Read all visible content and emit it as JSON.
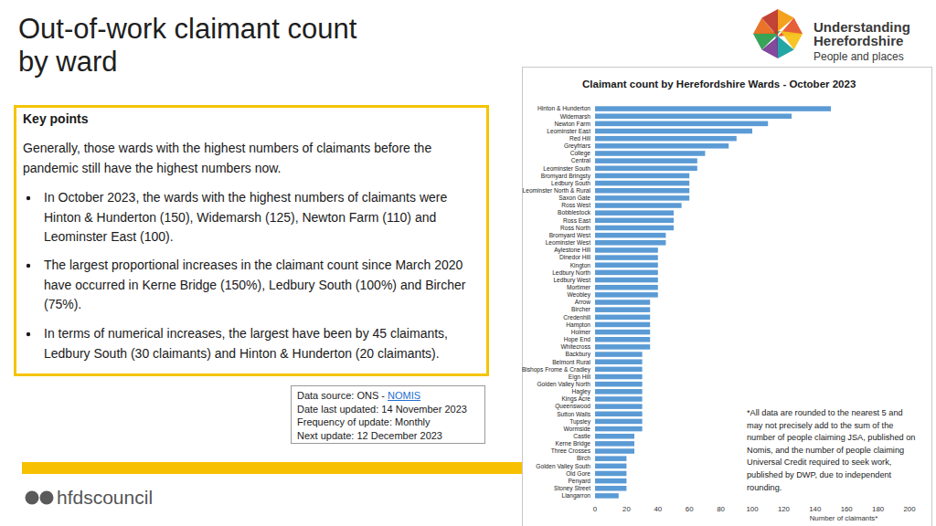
{
  "page": {
    "title_lines": [
      "Out-of-work claimant count",
      "by ward"
    ],
    "key_points": {
      "heading": "Key points",
      "intro": "Generally, those wards with the highest numbers of claimants before the pandemic still have the highest numbers now.",
      "bullets": [
        "In October 2023, the wards with the highest numbers of claimants were Hinton & Hunderton (150), Widemarsh (125), Newton Farm (110) and Leominster East (100).",
        "The largest proportional increases in the claimant count since March 2020 have occurred in Kerne Bridge (150%), Ledbury South (100%) and Bircher (75%).",
        "In terms of numerical increases, the largest have been by 45 claimants, Ledbury South (30 claimants) and Hinton & Hunderton (20 claimants)."
      ]
    },
    "data_source": {
      "label": "Data source: ONS - ",
      "link": "NOMIS",
      "lines": [
        "Date last updated: 14 November 2023",
        "Frequency of update: Monthly",
        "Next update: 12 December 2023"
      ]
    },
    "logo": {
      "lines": [
        "Understanding",
        "Herefordshire"
      ],
      "tagline": "People and places"
    },
    "footer": "hfdscouncil"
  },
  "chart_data": {
    "type": "bar",
    "orientation": "horizontal",
    "title": "Claimant count by Herefordshire Wards - October 2023",
    "x_label": "Number of claimants*",
    "annotation": "*All data are rounded to the nearest 5 and may not precisely add to the sum of the number of people claiming JSA, published on Nomis, and the number of people claiming Universal Credit required to seek work, published by DWP, due to independent rounding.",
    "categories": [
      "Hinton & Hunderton",
      "Widemarsh",
      "Newton Farm",
      "Leominster East",
      "Red Hill",
      "Greyfriars",
      "College",
      "Central",
      "Leominster South",
      "Bromyard Bringsty",
      "Ledbury South",
      "Leominster North & Rural",
      "Saxon Gate",
      "Ross West",
      "Bobblestock",
      "Ross East",
      "Ross North",
      "Bromyard West",
      "Leominster West",
      "Aylestone Hill",
      "Dinedor Hill",
      "Kington",
      "Ledbury North",
      "Ledbury West",
      "Mortimer",
      "Weobley",
      "Arrow",
      "Bircher",
      "Credenhill",
      "Hampton",
      "Holmer",
      "Hope End",
      "Whitecross",
      "Backbury",
      "Belmont Rural",
      "Bishops Frome & Cradley",
      "Eign Hill",
      "Golden Valley North",
      "Hagley",
      "Kings Acre",
      "Queenswood",
      "Sutton Walls",
      "Tupsley",
      "Wormside",
      "Castle",
      "Kerne Bridge",
      "Three Crosses",
      "Birch",
      "Golden Valley South",
      "Old Gore",
      "Penyard",
      "Stoney Street",
      "Llangarron"
    ],
    "values": [
      150,
      125,
      110,
      100,
      90,
      85,
      70,
      65,
      65,
      60,
      60,
      60,
      60,
      55,
      50,
      50,
      50,
      45,
      45,
      40,
      40,
      40,
      40,
      40,
      40,
      40,
      35,
      35,
      35,
      35,
      35,
      35,
      35,
      30,
      30,
      30,
      30,
      30,
      30,
      30,
      30,
      30,
      30,
      30,
      25,
      25,
      25,
      20,
      20,
      20,
      20,
      20,
      15
    ],
    "color": "#5b9bd5",
    "xlim": [
      0,
      200
    ],
    "xticks": [
      0,
      20,
      40,
      60,
      80,
      100,
      120,
      140,
      160,
      180,
      200
    ],
    "grid": false
  }
}
